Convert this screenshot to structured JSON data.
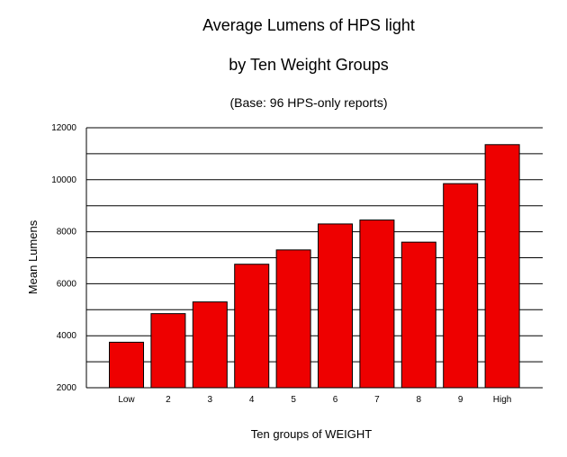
{
  "chart_data": {
    "type": "bar",
    "title": [
      "Average Lumens of HPS light",
      "by Ten Weight Groups"
    ],
    "subtitle": "(Base: 96 HPS-only reports)",
    "xlabel": "Ten groups of WEIGHT",
    "ylabel": "Mean Lumens",
    "categories": [
      "Low",
      "2",
      "3",
      "4",
      "5",
      "6",
      "7",
      "8",
      "9",
      "High"
    ],
    "values": [
      3750,
      4850,
      5300,
      6750,
      7300,
      8300,
      8450,
      7600,
      9850,
      11350
    ],
    "ylim": [
      2000,
      12000
    ],
    "yticks": [
      "2000",
      "4000",
      "6000",
      "8000",
      "10000",
      "12000"
    ],
    "ytick_values": [
      2000,
      4000,
      6000,
      8000,
      10000,
      12000
    ],
    "gridlines_every": 1000,
    "grid": true,
    "bar_color": "#ee0000",
    "bar_edge_color": "#000000"
  }
}
